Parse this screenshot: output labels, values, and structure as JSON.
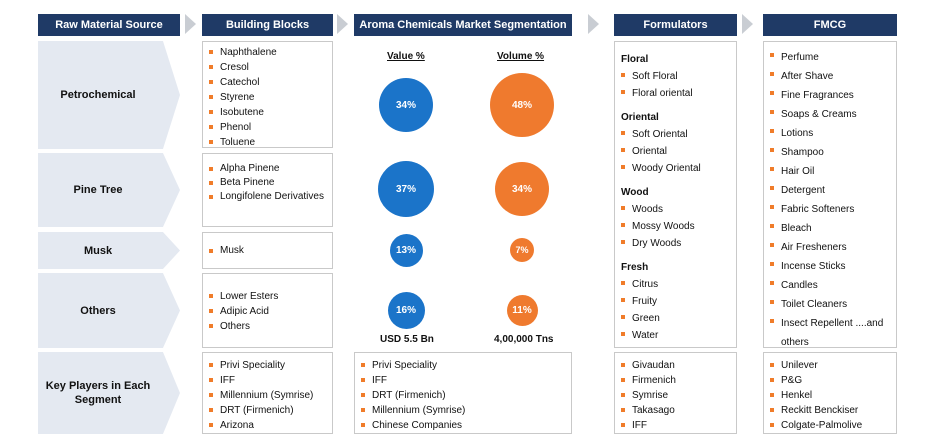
{
  "headers": {
    "raw_material": "Raw Material Source",
    "building_blocks": "Building Blocks",
    "segmentation": "Aroma Chemicals Market Segmentation",
    "formulators": "Formulators",
    "fmcg": "FMCG"
  },
  "sources": {
    "petrochemical": "Petrochemical",
    "pine_tree": "Pine Tree",
    "musk": "Musk",
    "others": "Others",
    "key_players": "Key Players in Each Segment"
  },
  "building_blocks": {
    "petrochemical": [
      "Naphthalene",
      "Cresol",
      "Catechol",
      "Styrene",
      "Isobutene",
      "Phenol",
      "Toluene"
    ],
    "pine_tree": [
      "Alpha Pinene",
      "Beta Pinene",
      "Longifolene Derivatives"
    ],
    "musk": [
      "Musk"
    ],
    "others": [
      "Lower Esters",
      "Adipic Acid",
      "Others"
    ],
    "key_players": [
      "Privi Speciality",
      "IFF",
      "Millennium (Symrise)",
      "DRT (Firmenich)",
      "Arizona"
    ]
  },
  "segmentation": {
    "value_label": "Value %",
    "volume_label": "Volume %",
    "rows": [
      {
        "name": "Petrochemical",
        "value": 34,
        "volume": 48,
        "value_text": "34%",
        "volume_text": "48%"
      },
      {
        "name": "Pine Tree",
        "value": 37,
        "volume": 34,
        "value_text": "37%",
        "volume_text": "34%"
      },
      {
        "name": "Musk",
        "value": 13,
        "volume": 7,
        "value_text": "13%",
        "volume_text": "7%"
      },
      {
        "name": "Others",
        "value": 16,
        "volume": 11,
        "value_text": "16%",
        "volume_text": "11%"
      }
    ],
    "total_value": "USD 5.5 Bn",
    "total_volume": "4,00,000 Tns",
    "key_players": [
      "Privi Speciality",
      "IFF",
      "DRT (Firmenich)",
      "Millennium (Symrise)",
      "Chinese Companies"
    ]
  },
  "formulators": {
    "groups": [
      {
        "title": "Floral",
        "items": [
          "Soft Floral",
          "Floral oriental"
        ]
      },
      {
        "title": "Oriental",
        "items": [
          "Soft Oriental",
          "Oriental",
          "Woody Oriental"
        ]
      },
      {
        "title": "Wood",
        "items": [
          "Woods",
          "Mossy Woods",
          "Dry Woods"
        ]
      },
      {
        "title": "Fresh",
        "items": [
          "Citrus",
          "Fruity",
          "Green",
          "Water"
        ]
      }
    ],
    "key_players": [
      "Givaudan",
      "Firmenich",
      "Symrise",
      "Takasago",
      "IFF"
    ]
  },
  "fmcg": {
    "items": [
      "Perfume",
      "After Shave",
      "Fine Fragrances",
      "Soaps & Creams",
      "Lotions",
      "Shampoo",
      "Hair Oil",
      "Detergent",
      "Fabric Softeners",
      "Bleach",
      "Air Fresheners",
      "Incense Sticks",
      "Candles",
      "Toilet Cleaners",
      "Insect Repellent ....and others"
    ],
    "key_players": [
      "Unilever",
      "P&G",
      "Henkel",
      "Reckitt Benckiser",
      "Colgate-Palmolive"
    ]
  },
  "colors": {
    "header_bg": "#1f3a66",
    "value_circle": "#1b74c9",
    "volume_circle": "#ef7a2e",
    "bullet": "#f07c2a"
  }
}
